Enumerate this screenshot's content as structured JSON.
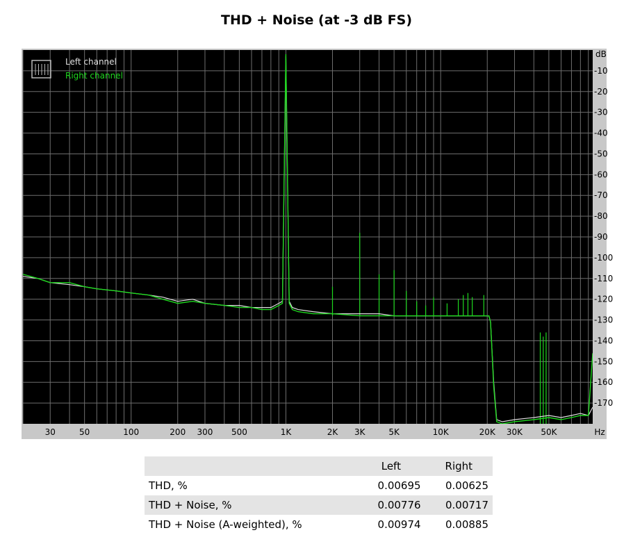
{
  "title": "THD + Noise (at -3 dB FS)",
  "colors": {
    "background": "#000000",
    "grid": "#6e6e6e",
    "left": "#e0e0e0",
    "right": "#1ed81e",
    "frame": "#c8c8c8"
  },
  "chart_data": {
    "type": "line",
    "x_scale": "log",
    "xlim": [
      20,
      96000
    ],
    "ylim": [
      -180,
      0
    ],
    "x_unit": "Hz",
    "y_unit": "dB",
    "x_ticks": [
      {
        "v": 30,
        "l": "30"
      },
      {
        "v": 50,
        "l": "50"
      },
      {
        "v": 100,
        "l": "100"
      },
      {
        "v": 200,
        "l": "200"
      },
      {
        "v": 300,
        "l": "300"
      },
      {
        "v": 500,
        "l": "500"
      },
      {
        "v": 1000,
        "l": "1K"
      },
      {
        "v": 2000,
        "l": "2K"
      },
      {
        "v": 3000,
        "l": "3K"
      },
      {
        "v": 5000,
        "l": "5K"
      },
      {
        "v": 10000,
        "l": "10K"
      },
      {
        "v": 20000,
        "l": "20K"
      },
      {
        "v": 30000,
        "l": "30K"
      },
      {
        "v": 50000,
        "l": "50K"
      }
    ],
    "y_ticks": [
      {
        "v": -10,
        "l": "-10"
      },
      {
        "v": -20,
        "l": "-20"
      },
      {
        "v": -30,
        "l": "-30"
      },
      {
        "v": -40,
        "l": "-40"
      },
      {
        "v": -50,
        "l": "-50"
      },
      {
        "v": -60,
        "l": "-60"
      },
      {
        "v": -70,
        "l": "-70"
      },
      {
        "v": -80,
        "l": "-80"
      },
      {
        "v": -90,
        "l": "-90"
      },
      {
        "v": -100,
        "l": "-100"
      },
      {
        "v": -110,
        "l": "-110"
      },
      {
        "v": -120,
        "l": "-120"
      },
      {
        "v": -130,
        "l": "-130"
      },
      {
        "v": -140,
        "l": "-140"
      },
      {
        "v": -150,
        "l": "-150"
      },
      {
        "v": -160,
        "l": "-160"
      },
      {
        "v": -170,
        "l": "-170"
      }
    ],
    "legend_position": "top-left",
    "grid": true,
    "series": [
      {
        "name": "Left channel",
        "color": "#e0e0e0",
        "x": [
          20,
          25,
          30,
          40,
          50,
          60,
          80,
          100,
          130,
          160,
          200,
          250,
          300,
          400,
          500,
          600,
          700,
          800,
          900,
          950,
          1000,
          1050,
          1100,
          1200,
          1500,
          2000,
          3000,
          4000,
          5000,
          7000,
          10000,
          15000,
          19000,
          20500,
          21000,
          22000,
          23000,
          25000,
          30000,
          40000,
          50000,
          60000,
          70000,
          80000,
          90000,
          96000
        ],
        "y": [
          -109,
          -110,
          -112,
          -113,
          -114,
          -115,
          -116,
          -117,
          -118,
          -119,
          -121,
          -120,
          -122,
          -123,
          -123,
          -124,
          -124,
          -124,
          -122,
          -121,
          -3,
          -121,
          -124,
          -125,
          -126,
          -127,
          -127,
          -127,
          -128,
          -128,
          -128,
          -128,
          -128,
          -128,
          -131,
          -160,
          -178,
          -179,
          -178,
          -177,
          -176,
          -177,
          -176,
          -175,
          -176,
          -172
        ]
      },
      {
        "name": "Right channel",
        "color": "#1ed81e",
        "x": [
          20,
          25,
          30,
          40,
          50,
          60,
          80,
          100,
          130,
          160,
          200,
          250,
          300,
          400,
          500,
          600,
          700,
          800,
          900,
          950,
          1000,
          1050,
          1100,
          1200,
          1500,
          2000,
          3000,
          4000,
          5000,
          7000,
          10000,
          15000,
          19000,
          20500,
          21000,
          22000,
          23000,
          25000,
          30000,
          40000,
          50000,
          60000,
          70000,
          80000,
          90000,
          96000
        ],
        "y": [
          -108,
          -110,
          -112,
          -112,
          -114,
          -115,
          -116,
          -117,
          -118,
          -120,
          -122,
          -121,
          -122,
          -123,
          -124,
          -124,
          -125,
          -125,
          -123,
          -122,
          -2,
          -122,
          -125,
          -126,
          -127,
          -127,
          -128,
          -128,
          -128,
          -128,
          -128,
          -128,
          -128,
          -128,
          -131,
          -162,
          -179,
          -180,
          -179,
          -178,
          -177,
          -178,
          -177,
          -176,
          -176,
          -146
        ]
      }
    ],
    "spikes": [
      {
        "x": 2000,
        "y": -114
      },
      {
        "x": 3000,
        "y": -88
      },
      {
        "x": 4000,
        "y": -108
      },
      {
        "x": 5000,
        "y": -106
      },
      {
        "x": 6000,
        "y": -116
      },
      {
        "x": 7000,
        "y": -121
      },
      {
        "x": 8000,
        "y": -123
      },
      {
        "x": 9000,
        "y": -119
      },
      {
        "x": 11000,
        "y": -122
      },
      {
        "x": 13000,
        "y": -120
      },
      {
        "x": 14000,
        "y": -118
      },
      {
        "x": 15000,
        "y": -117
      },
      {
        "x": 16000,
        "y": -119
      },
      {
        "x": 19000,
        "y": -118
      },
      {
        "x": 44000,
        "y": -136
      },
      {
        "x": 46000,
        "y": -138
      },
      {
        "x": 48000,
        "y": -136
      }
    ]
  },
  "table": {
    "headers": [
      "",
      "Left",
      "Right"
    ],
    "rows": [
      [
        "THD, %",
        "0.00695",
        "0.00625"
      ],
      [
        "THD + Noise, %",
        "0.00776",
        "0.00717"
      ],
      [
        "THD + Noise (A-weighted), %",
        "0.00974",
        "0.00885"
      ]
    ]
  }
}
